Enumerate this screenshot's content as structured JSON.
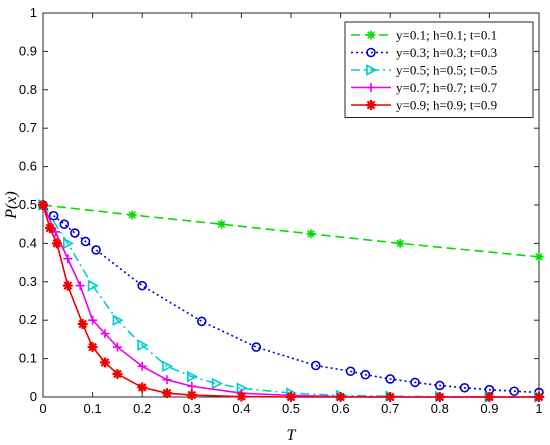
{
  "chart_data": {
    "type": "line",
    "title": "",
    "xlabel": "T",
    "ylabel": "P(x)",
    "xlim": [
      0,
      1
    ],
    "ylim": [
      0,
      1
    ],
    "xticks": [
      "0",
      "0.1",
      "0.2",
      "0.3",
      "0.4",
      "0.5",
      "0.6",
      "0.7",
      "0.8",
      "0.9",
      "1"
    ],
    "yticks": [
      "0",
      "0.1",
      "0.2",
      "0.3",
      "0.4",
      "0.5",
      "0.6",
      "0.7",
      "0.8",
      "0.9",
      "1"
    ],
    "grid": false,
    "legend_position": "top-right",
    "series": [
      {
        "name": "y=0.1; h=0.1; t=0.1",
        "color": "#00dd00",
        "line_style": "dashed",
        "marker": "asterisk",
        "x": [
          0,
          0.18,
          0.36,
          0.54,
          0.72,
          1.0
        ],
        "y": [
          0.5,
          0.474,
          0.45,
          0.425,
          0.4,
          0.365
        ]
      },
      {
        "name": "y=0.3; h=0.3; t=0.3",
        "color": "#0000cc",
        "line_style": "dotted",
        "marker": "circle",
        "x": [
          0,
          0.0214,
          0.0429,
          0.0643,
          0.0857,
          0.1071,
          0.2,
          0.32,
          0.43,
          0.55,
          0.62,
          0.65,
          0.7,
          0.75,
          0.8,
          0.85,
          0.9,
          0.95,
          1.0
        ],
        "y": [
          0.5,
          0.472,
          0.45,
          0.427,
          0.405,
          0.383,
          0.29,
          0.197,
          0.13,
          0.082,
          0.067,
          0.058,
          0.047,
          0.038,
          0.03,
          0.024,
          0.019,
          0.015,
          0.012
        ]
      },
      {
        "name": "y=0.5; h=0.5; t=0.5",
        "color": "#00cccc",
        "line_style": "dashdot",
        "marker": "triangle-right",
        "x": [
          0,
          0.05,
          0.1,
          0.15,
          0.2,
          0.25,
          0.3,
          0.35,
          0.4,
          0.5,
          0.6,
          0.7,
          0.8,
          0.9,
          1.0
        ],
        "y": [
          0.5,
          0.4,
          0.29,
          0.2,
          0.135,
          0.08,
          0.053,
          0.035,
          0.023,
          0.01,
          0.004,
          0.002,
          0.001,
          0.0,
          0.0
        ]
      },
      {
        "name": "y=0.7; h=0.7; t=0.7",
        "color": "#ee00ee",
        "line_style": "solid",
        "marker": "plus",
        "x": [
          0,
          0.025,
          0.05,
          0.075,
          0.1,
          0.125,
          0.15,
          0.2,
          0.25,
          0.3,
          0.4,
          0.5,
          0.6,
          0.7,
          0.8,
          0.9,
          1.0
        ],
        "y": [
          0.5,
          0.43,
          0.36,
          0.29,
          0.2,
          0.165,
          0.13,
          0.08,
          0.045,
          0.028,
          0.01,
          0.004,
          0.001,
          0.0,
          0.0,
          0.0,
          0.0
        ]
      },
      {
        "name": "y=0.9; h=0.9; t=0.9",
        "color": "#ee0000",
        "line_style": "solid",
        "marker": "star",
        "x": [
          0,
          0.014,
          0.028,
          0.05,
          0.08,
          0.1,
          0.125,
          0.15,
          0.2,
          0.25,
          0.3,
          0.4,
          0.5,
          0.6,
          0.7,
          0.8,
          0.9,
          1.0
        ],
        "y": [
          0.5,
          0.44,
          0.4,
          0.29,
          0.19,
          0.13,
          0.09,
          0.06,
          0.025,
          0.01,
          0.005,
          0.001,
          0.0,
          0.0,
          0.0,
          0.0,
          0.0,
          0.0
        ]
      }
    ]
  }
}
